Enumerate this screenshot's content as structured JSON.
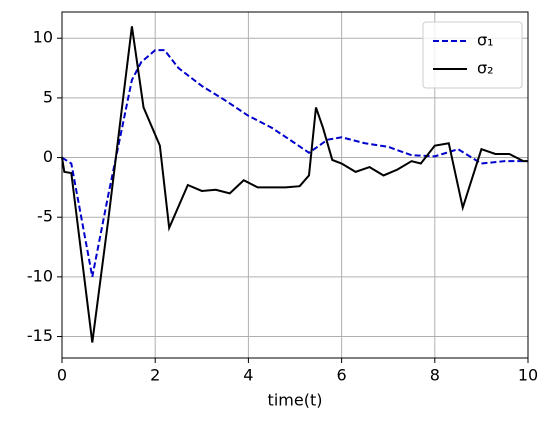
{
  "chart_data": {
    "type": "line",
    "x_label": "time(t)",
    "xlim": [
      0,
      10
    ],
    "ylim": [
      -16.8,
      12.2
    ],
    "xticks": [
      0,
      2,
      4,
      6,
      8,
      10
    ],
    "yticks": [
      -15,
      -10,
      -5,
      0,
      5,
      10
    ],
    "grid": true,
    "legend": "upper right",
    "series": [
      {
        "name": "σ₁",
        "color": "#0000cc",
        "dash": "dashed",
        "x": [
          0,
          0.2,
          0.65,
          1.0,
          1.5,
          1.7,
          2.0,
          2.2,
          2.5,
          3.0,
          3.5,
          4.0,
          4.5,
          5.0,
          5.3,
          5.7,
          6.0,
          6.5,
          7.0,
          7.5,
          8.0,
          8.5,
          9.0,
          9.5,
          10
        ],
        "values": [
          0,
          -0.5,
          -10,
          -3,
          6.5,
          8,
          9,
          9,
          7.5,
          6,
          4.8,
          3.5,
          2.5,
          1.2,
          0.4,
          1.5,
          1.7,
          1.2,
          0.9,
          0.2,
          0.1,
          0.7,
          -0.5,
          -0.3,
          -0.3
        ]
      },
      {
        "name": "σ₂",
        "color": "#000000",
        "dash": "solid",
        "x": [
          0,
          0.05,
          0.2,
          0.65,
          1.0,
          1.5,
          1.75,
          2.1,
          2.3,
          2.7,
          3.0,
          3.3,
          3.6,
          3.9,
          4.2,
          4.5,
          4.8,
          5.1,
          5.3,
          5.45,
          5.6,
          5.8,
          6.0,
          6.3,
          6.6,
          6.9,
          7.2,
          7.5,
          7.7,
          8.0,
          8.3,
          8.6,
          9.0,
          9.3,
          9.6,
          9.9,
          10
        ],
        "values": [
          0,
          -1.2,
          -1.3,
          -15.5,
          -5,
          11,
          4.2,
          1,
          -5.9,
          -2.3,
          -2.8,
          -2.7,
          -3,
          -1.9,
          -2.5,
          -2.5,
          -2.5,
          -2.4,
          -1.5,
          4.2,
          2.5,
          -0.2,
          -0.5,
          -1.2,
          -0.8,
          -1.5,
          -1,
          -0.3,
          -0.5,
          1,
          1.2,
          -4.2,
          0.7,
          0.3,
          0.3,
          -0.3,
          -0.3
        ]
      }
    ]
  }
}
